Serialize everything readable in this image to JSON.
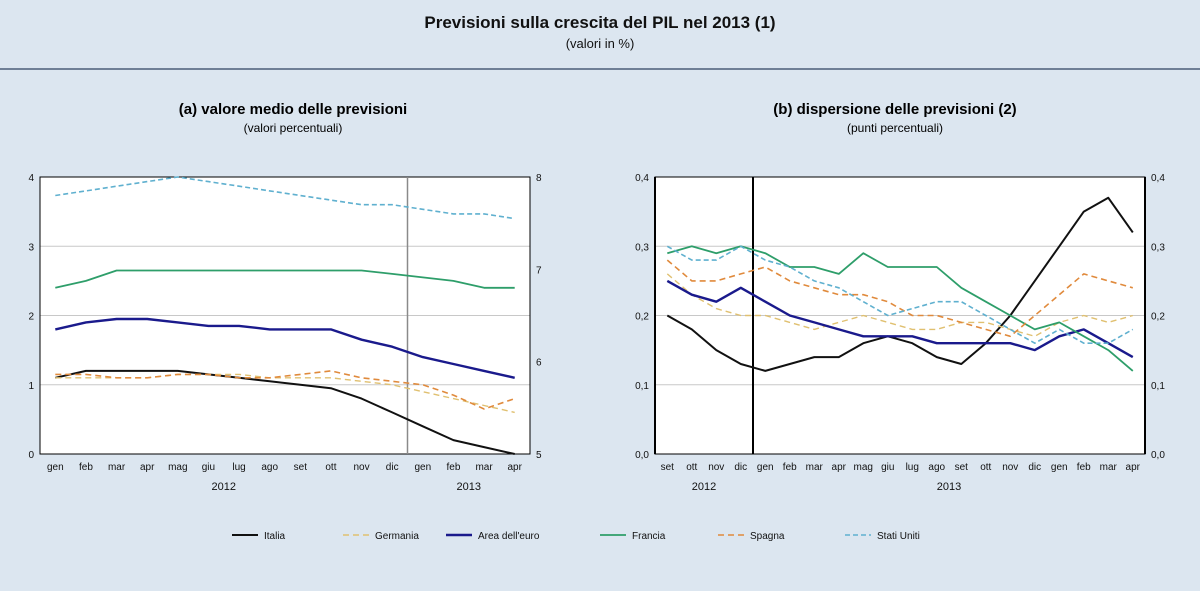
{
  "header": {
    "title": "Previsioni sulla crescita del PIL nel 2013 (1)",
    "subtitle": "(valori in %)"
  },
  "colors": {
    "Italia": "#111111",
    "Germania": "#e0c070",
    "Area dell'euro": "#1a1a8c",
    "Francia": "#2e9e6a",
    "Spagna": "#e08a3c",
    "Stati Uniti": "#5fb0cf",
    "background": "#dce6f0",
    "plot": "#ffffff"
  },
  "chart_data": [
    {
      "type": "line",
      "title": "(a) valore medio delle previsioni",
      "subtitle": "(valori percentuali)",
      "x": [
        "gen",
        "feb",
        "mar",
        "apr",
        "mag",
        "giu",
        "lug",
        "ago",
        "set",
        "ott",
        "nov",
        "dic",
        "gen",
        "feb",
        "mar",
        "apr"
      ],
      "year_labels": [
        "2012",
        "2013"
      ],
      "ylim_left": [
        0,
        4
      ],
      "yticks_left": [
        "0",
        "1",
        "2",
        "3",
        "4"
      ],
      "ylim_right": [
        5,
        8
      ],
      "yticks_right": [
        "5",
        "6",
        "7",
        "8"
      ],
      "vertical_marker_between": [
        "dic",
        "gen"
      ],
      "grid": true,
      "series": [
        {
          "name": "Italia",
          "axis": "left",
          "values": [
            1.1,
            1.2,
            1.2,
            1.2,
            1.2,
            1.15,
            1.1,
            1.05,
            1.0,
            0.95,
            0.8,
            0.6,
            0.4,
            0.2,
            0.1,
            0.0
          ]
        },
        {
          "name": "Germania",
          "axis": "left",
          "values": [
            1.1,
            1.1,
            1.1,
            1.1,
            1.15,
            1.15,
            1.15,
            1.1,
            1.1,
            1.1,
            1.05,
            1.0,
            0.9,
            0.8,
            0.7,
            0.6
          ]
        },
        {
          "name": "Area dell'euro",
          "axis": "left",
          "values": [
            1.8,
            1.9,
            1.95,
            1.95,
            1.9,
            1.85,
            1.85,
            1.8,
            1.8,
            1.8,
            1.65,
            1.55,
            1.4,
            1.3,
            1.2,
            1.1
          ]
        },
        {
          "name": "Francia",
          "axis": "left",
          "values": [
            2.4,
            2.5,
            2.65,
            2.65,
            2.65,
            2.65,
            2.65,
            2.65,
            2.65,
            2.65,
            2.65,
            2.6,
            2.55,
            2.5,
            2.4,
            2.4
          ]
        },
        {
          "name": "Spagna",
          "axis": "left",
          "values": [
            1.15,
            1.15,
            1.1,
            1.1,
            1.15,
            1.15,
            1.1,
            1.1,
            1.15,
            1.2,
            1.1,
            1.05,
            1.0,
            0.85,
            0.65,
            0.8
          ]
        },
        {
          "name": "Stati Uniti",
          "axis": "right",
          "values": [
            7.8,
            7.85,
            7.9,
            7.95,
            8.0,
            7.95,
            7.9,
            7.85,
            7.8,
            7.75,
            7.7,
            7.7,
            7.65,
            7.6,
            7.6,
            7.55
          ]
        }
      ]
    },
    {
      "type": "line",
      "title": "(b) dispersione delle previsioni (2)",
      "subtitle": "(punti percentuali)",
      "x": [
        "set",
        "ott",
        "nov",
        "dic",
        "gen",
        "feb",
        "mar",
        "apr",
        "mag",
        "giu",
        "lug",
        "ago",
        "set",
        "ott",
        "nov",
        "dic",
        "gen",
        "feb",
        "mar",
        "apr"
      ],
      "year_labels": [
        "2012",
        "2013"
      ],
      "ylim_left": [
        0.0,
        0.4
      ],
      "yticks_left": [
        "0,0",
        "0,1",
        "0,2",
        "0,3",
        "0,4"
      ],
      "ylim_right": [
        0.0,
        0.4
      ],
      "yticks_right": [
        "0,0",
        "0,1",
        "0,2",
        "0,3",
        "0,4"
      ],
      "vertical_marker_between": [
        "dic",
        "gen"
      ],
      "grid": true,
      "series": [
        {
          "name": "Italia",
          "values": [
            0.2,
            0.18,
            0.15,
            0.13,
            0.12,
            0.13,
            0.14,
            0.14,
            0.16,
            0.17,
            0.16,
            0.14,
            0.13,
            0.16,
            0.2,
            0.25,
            0.3,
            0.35,
            0.37,
            0.32
          ]
        },
        {
          "name": "Germania",
          "values": [
            0.26,
            0.23,
            0.21,
            0.2,
            0.2,
            0.19,
            0.18,
            0.19,
            0.2,
            0.19,
            0.18,
            0.18,
            0.19,
            0.19,
            0.18,
            0.17,
            0.19,
            0.2,
            0.19,
            0.2
          ]
        },
        {
          "name": "Area dell'euro",
          "values": [
            0.25,
            0.23,
            0.22,
            0.24,
            0.22,
            0.2,
            0.19,
            0.18,
            0.17,
            0.17,
            0.17,
            0.16,
            0.16,
            0.16,
            0.16,
            0.15,
            0.17,
            0.18,
            0.16,
            0.14
          ]
        },
        {
          "name": "Francia",
          "values": [
            0.29,
            0.3,
            0.29,
            0.3,
            0.29,
            0.27,
            0.27,
            0.26,
            0.29,
            0.27,
            0.27,
            0.27,
            0.24,
            0.22,
            0.2,
            0.18,
            0.19,
            0.17,
            0.15,
            0.12
          ]
        },
        {
          "name": "Spagna",
          "values": [
            0.28,
            0.25,
            0.25,
            0.26,
            0.27,
            0.25,
            0.24,
            0.23,
            0.23,
            0.22,
            0.2,
            0.2,
            0.19,
            0.18,
            0.17,
            0.2,
            0.23,
            0.26,
            0.25,
            0.24
          ]
        },
        {
          "name": "Stati Uniti",
          "values": [
            0.3,
            0.28,
            0.28,
            0.3,
            0.28,
            0.27,
            0.25,
            0.24,
            0.22,
            0.2,
            0.21,
            0.22,
            0.22,
            0.2,
            0.18,
            0.16,
            0.18,
            0.16,
            0.16,
            0.18
          ]
        }
      ]
    }
  ]
}
